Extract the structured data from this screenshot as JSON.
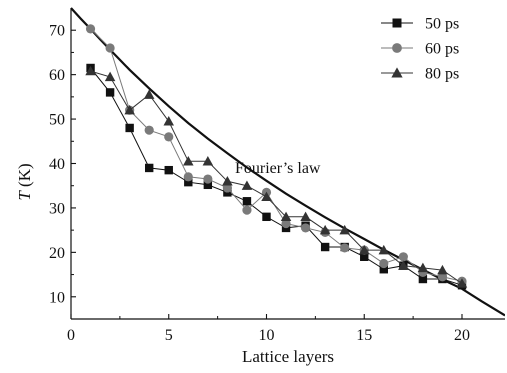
{
  "chart_data": {
    "type": "line",
    "xlabel": "Lattice layers",
    "ylabel_italic": "T",
    "ylabel_rest": " (K)",
    "xlim": [
      0,
      22.2
    ],
    "ylim": [
      5,
      75
    ],
    "x_ticks": [
      0,
      5,
      10,
      15,
      20
    ],
    "y_ticks": [
      10,
      20,
      30,
      40,
      50,
      60,
      70
    ],
    "legend_position": "top-right",
    "annotation": "Fourier’s law",
    "series": [
      {
        "name": "50 ps",
        "marker": "square",
        "color": "#111111",
        "x": [
          1,
          2,
          3,
          4,
          5,
          6,
          7,
          8,
          9,
          10,
          11,
          12,
          13,
          14,
          15,
          16,
          17,
          18,
          19,
          20
        ],
        "y": [
          61.5,
          56,
          48,
          39,
          38.5,
          35.8,
          35.2,
          33.5,
          31.5,
          28,
          25.5,
          26,
          21.2,
          21.2,
          19,
          16.2,
          17,
          14,
          14,
          12.6
        ]
      },
      {
        "name": "60 ps",
        "marker": "circle",
        "color": "#7a7a7a",
        "x": [
          1,
          2,
          3,
          4,
          5,
          6,
          7,
          8,
          9,
          10,
          11,
          12,
          13,
          14,
          15,
          16,
          17,
          18,
          19,
          20
        ],
        "y": [
          70.3,
          66,
          52,
          47.5,
          46,
          37,
          36.5,
          34.5,
          29.5,
          33.5,
          26.5,
          25.5,
          24.5,
          21,
          20.5,
          17.5,
          19,
          15.5,
          14.5,
          13.5
        ]
      },
      {
        "name": "80 ps",
        "marker": "triangle",
        "color": "#333333",
        "x": [
          1,
          2,
          3,
          4,
          5,
          6,
          7,
          8,
          9,
          10,
          11,
          12,
          13,
          14,
          15,
          16,
          17,
          18,
          19,
          20
        ],
        "y": [
          60.8,
          59.5,
          52,
          55.5,
          49.5,
          40.5,
          40.5,
          36,
          35,
          32.5,
          28,
          28,
          25,
          25,
          20.5,
          20.5,
          17,
          16.5,
          16,
          13
        ]
      }
    ],
    "fit_curve": {
      "name": "Fourier’s law",
      "x": [
        0,
        0.5,
        1,
        1.5,
        2,
        3,
        4,
        5,
        6,
        7,
        8,
        9,
        10,
        11,
        12,
        13,
        14,
        15,
        16,
        17,
        18,
        19,
        20,
        21,
        22.2
      ],
      "y": [
        75,
        72.6,
        70.3,
        67.9,
        65.6,
        61.1,
        56.9,
        52.9,
        49.1,
        45.6,
        42.3,
        39.1,
        36.1,
        33.2,
        30.5,
        27.9,
        25.4,
        23.0,
        20.6,
        18.3,
        16.1,
        13.9,
        11.8,
        9.0,
        5.8
      ]
    }
  }
}
